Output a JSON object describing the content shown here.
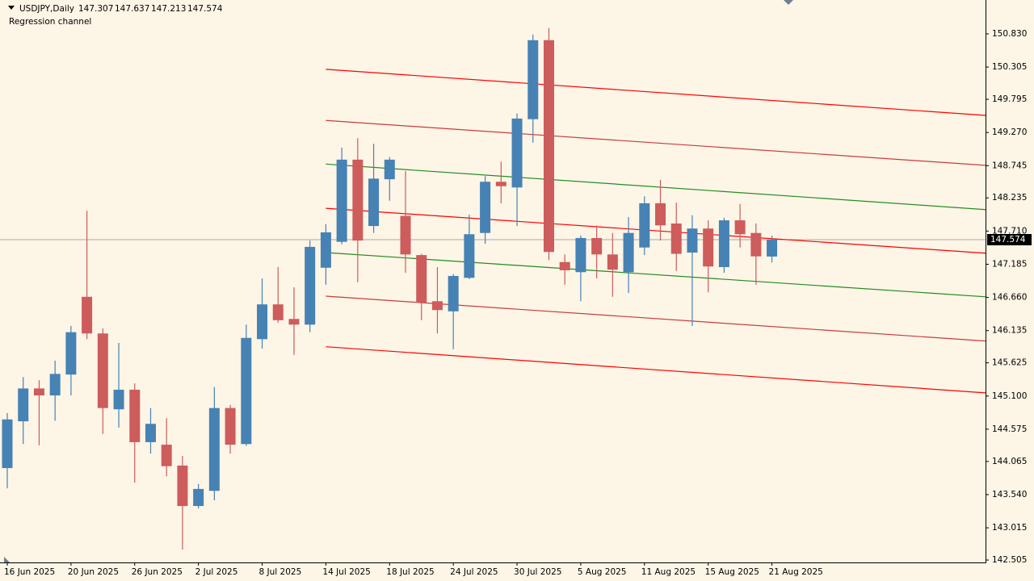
{
  "chart_data": {
    "type": "candlestick",
    "symbol": "USDJPY,Daily",
    "indicator": "Regression channel",
    "bull_color": "#4682b4",
    "bear_color": "#cd5c5c",
    "price_line_color": "#a9a9a9",
    "grid": false,
    "categories": [
      "16 Jun 2025",
      null,
      null,
      null,
      "20 Jun 2025",
      null,
      null,
      null,
      "26 Jun 2025",
      null,
      null,
      null,
      "2 Jul 2025",
      null,
      null,
      null,
      "8 Jul 2025",
      null,
      null,
      null,
      "14 Jul 2025",
      null,
      null,
      null,
      "18 Jul 2025",
      null,
      null,
      null,
      "24 Jul 2025",
      null,
      null,
      null,
      "30 Jul 2025",
      null,
      null,
      null,
      "5 Aug 2025",
      null,
      null,
      null,
      "11 Aug 2025",
      null,
      null,
      null,
      "15 Aug 2025",
      null,
      null,
      null,
      "21 Aug 2025"
    ],
    "open": [
      143.96,
      144.7,
      145.22,
      145.11,
      145.44,
      146.67,
      146.09,
      144.89,
      145.2,
      144.37,
      144.33,
      144.0,
      143.36,
      143.6,
      144.91,
      144.34,
      146.0,
      146.55,
      146.32,
      146.23,
      147.13,
      147.54,
      148.84,
      147.79,
      148.53,
      147.95,
      147.33,
      146.6,
      146.44,
      146.97,
      147.68,
      148.49,
      148.4,
      149.48,
      150.73,
      147.22,
      147.06,
      147.6,
      147.34,
      147.06,
      147.45,
      148.15,
      147.83,
      147.37,
      147.75,
      147.14,
      147.88,
      147.68,
      147.307
    ],
    "high": [
      144.83,
      145.4,
      145.35,
      145.66,
      146.21,
      148.03,
      146.17,
      145.94,
      145.3,
      144.91,
      144.75,
      144.15,
      143.71,
      145.24,
      144.96,
      146.23,
      146.96,
      147.14,
      146.82,
      147.56,
      147.82,
      149.03,
      149.18,
      149.09,
      148.88,
      148.66,
      147.35,
      147.14,
      147.03,
      147.97,
      148.58,
      148.81,
      149.57,
      150.82,
      150.92,
      147.34,
      147.64,
      147.8,
      147.68,
      147.93,
      148.26,
      148.52,
      148.16,
      147.96,
      147.88,
      147.92,
      148.14,
      147.83,
      147.637
    ],
    "low": [
      143.64,
      144.34,
      144.32,
      144.71,
      145.11,
      146.0,
      144.5,
      144.6,
      143.73,
      144.19,
      143.83,
      142.67,
      143.32,
      143.45,
      144.19,
      144.31,
      145.85,
      146.26,
      145.75,
      146.11,
      146.86,
      147.5,
      146.9,
      147.68,
      148.19,
      147.05,
      146.3,
      146.09,
      145.84,
      146.95,
      147.51,
      148.15,
      147.79,
      149.11,
      147.25,
      146.86,
      146.6,
      146.96,
      146.67,
      146.73,
      147.33,
      147.56,
      147.08,
      146.21,
      146.74,
      147.05,
      147.45,
      146.86,
      147.213
    ],
    "close": [
      144.73,
      145.22,
      145.11,
      145.45,
      146.11,
      146.09,
      144.91,
      145.2,
      144.37,
      144.66,
      143.99,
      143.36,
      143.63,
      144.91,
      144.33,
      146.02,
      146.55,
      146.3,
      146.23,
      147.46,
      147.69,
      148.84,
      147.56,
      148.54,
      148.84,
      147.34,
      146.58,
      146.46,
      147.0,
      147.66,
      148.49,
      148.42,
      149.49,
      150.73,
      147.38,
      147.09,
      147.6,
      147.34,
      147.1,
      147.68,
      148.15,
      147.8,
      147.35,
      147.75,
      147.15,
      147.88,
      147.66,
      147.31,
      147.574
    ],
    "channel": {
      "start": 20,
      "lines": [
        {
          "color": "#ff0000",
          "values": [
            150.27,
            149.54
          ]
        },
        {
          "color": "#c83c3c",
          "values": [
            149.46,
            148.75
          ]
        },
        {
          "color": "#228b22",
          "values": [
            148.77,
            148.05
          ]
        },
        {
          "color": "#ff0000",
          "values": [
            148.07,
            147.36
          ]
        },
        {
          "color": "#228b22",
          "values": [
            147.37,
            146.67
          ]
        },
        {
          "color": "#c83c3c",
          "values": [
            146.68,
            145.97
          ]
        },
        {
          "color": "#ff0000",
          "values": [
            145.88,
            145.15
          ]
        }
      ]
    },
    "ylim": [
      142.467,
      151.366
    ],
    "yticks": [
      {
        "value": 150.83,
        "label": "150.830"
      },
      {
        "value": 150.305,
        "label": "150.305"
      },
      {
        "value": 149.795,
        "label": "149.795"
      },
      {
        "value": 149.27,
        "label": "149.270"
      },
      {
        "value": 148.745,
        "label": "148.745"
      },
      {
        "value": 148.235,
        "label": "148.235"
      },
      {
        "value": 147.71,
        "label": "147.710"
      },
      {
        "value": 147.185,
        "label": "147.185"
      },
      {
        "value": 146.66,
        "label": "146.660"
      },
      {
        "value": 146.135,
        "label": "146.135"
      },
      {
        "value": 145.625,
        "label": "145.625"
      },
      {
        "value": 145.1,
        "label": "145.100"
      },
      {
        "value": 144.575,
        "label": "144.575"
      },
      {
        "value": 144.065,
        "label": "144.065"
      },
      {
        "value": 143.54,
        "label": "143.540"
      },
      {
        "value": 143.015,
        "label": "143.015"
      },
      {
        "value": 142.505,
        "label": "142.505"
      }
    ]
  }
}
